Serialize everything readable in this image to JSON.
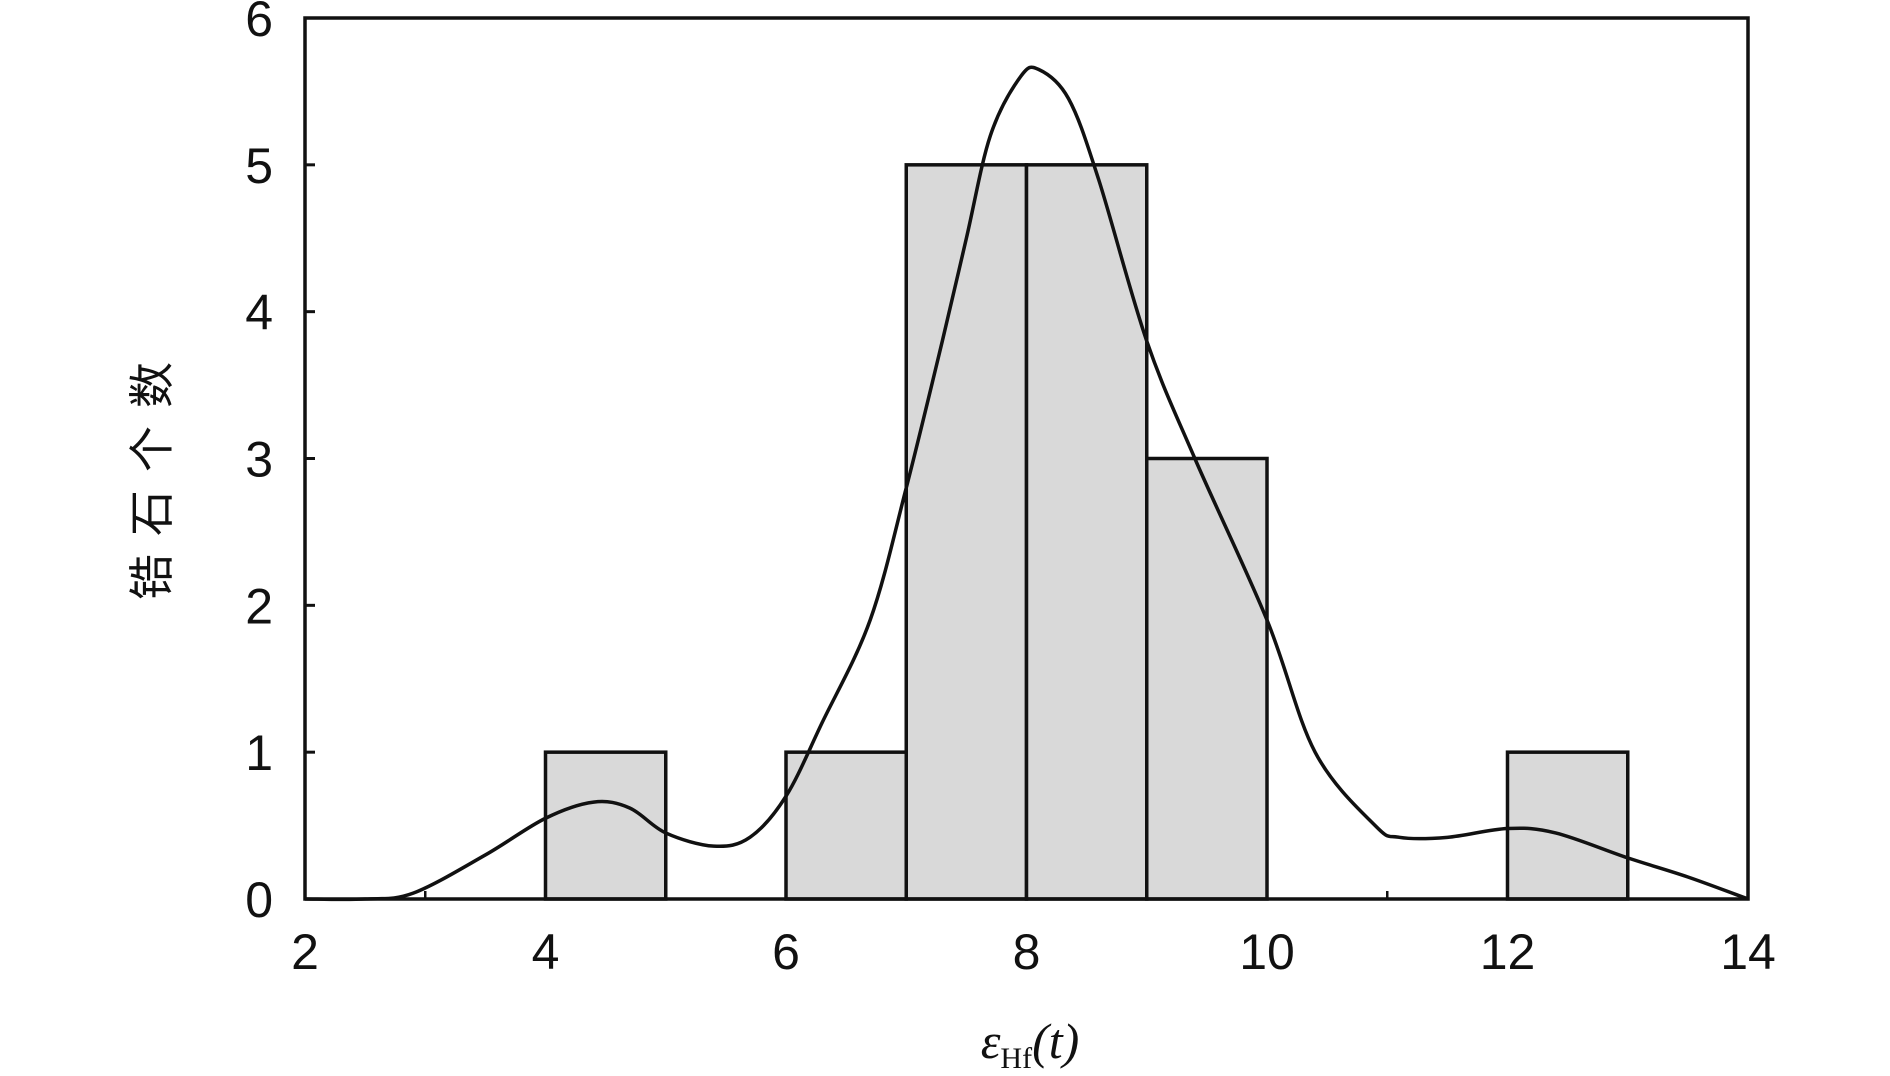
{
  "chart_data": {
    "type": "bar",
    "title": "",
    "xlabel": "εHf(t)",
    "xlabel_main": "ε",
    "xlabel_sub": "Hf",
    "xlabel_tail": "(t)",
    "ylabel": "锆石个数",
    "xlim": [
      2,
      14
    ],
    "ylim": [
      0,
      6
    ],
    "xticks": [
      2,
      4,
      6,
      8,
      10,
      12,
      14
    ],
    "yticks": [
      0,
      1,
      2,
      3,
      4,
      5,
      6
    ],
    "grid": false,
    "bar_color": "#d9d9d9",
    "bins": [
      {
        "x0": 4,
        "x1": 5,
        "count": 1
      },
      {
        "x0": 6,
        "x1": 7,
        "count": 1
      },
      {
        "x0": 7,
        "x1": 8,
        "count": 5
      },
      {
        "x0": 8,
        "x1": 9,
        "count": 5
      },
      {
        "x0": 9,
        "x1": 10,
        "count": 3
      },
      {
        "x0": 12,
        "x1": 13,
        "count": 1
      }
    ],
    "density_curve": {
      "x": [
        2.0,
        2.5,
        2.9,
        3.5,
        4.0,
        4.4,
        4.7,
        5.0,
        5.4,
        5.7,
        6.0,
        6.3,
        6.7,
        7.0,
        7.3,
        7.5,
        7.7,
        7.95,
        8.1,
        8.35,
        8.6,
        9.0,
        9.4,
        10.0,
        10.4,
        10.9,
        11.1,
        11.5,
        12.0,
        12.4,
        13.0,
        13.5,
        14.0
      ],
      "y": [
        0,
        0,
        0.04,
        0.3,
        0.55,
        0.66,
        0.62,
        0.45,
        0.36,
        0.42,
        0.7,
        1.2,
        1.9,
        2.8,
        3.8,
        4.5,
        5.2,
        5.6,
        5.65,
        5.45,
        4.9,
        3.8,
        3.0,
        1.9,
        1.0,
        0.5,
        0.42,
        0.42,
        0.48,
        0.45,
        0.28,
        0.15,
        0
      ]
    }
  }
}
